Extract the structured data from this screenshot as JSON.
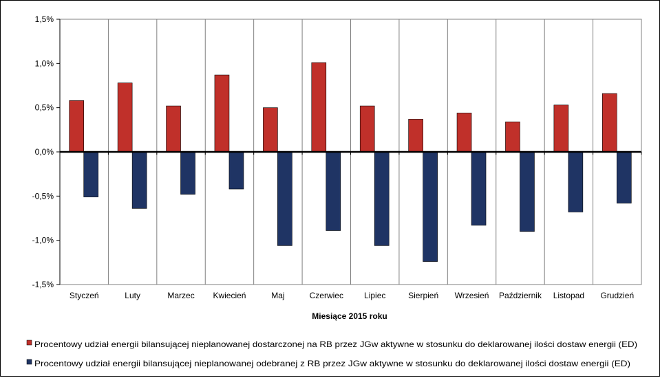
{
  "chart_data": {
    "type": "bar",
    "title": "",
    "xlabel": "Miesiące 2015  roku",
    "ylabel": "",
    "categories": [
      "Styczeń",
      "Luty",
      "Marzec",
      "Kwiecień",
      "Maj",
      "Czerwiec",
      "Lipiec",
      "Sierpień",
      "Wrzesień",
      "Październik",
      "Listopad",
      "Grudzień"
    ],
    "series": [
      {
        "name": "Procentowy udział energii bilansującej nieplanowanej dostarczonej na RB przez JGw aktywne w stosunku do deklarowanej ilości dostaw energii (ED)",
        "color": "#c0302a",
        "values": [
          0.58,
          0.78,
          0.52,
          0.87,
          0.5,
          1.01,
          0.52,
          0.37,
          0.44,
          0.34,
          0.53,
          0.66
        ]
      },
      {
        "name": "Procentowy udział energii bilansującej nieplanowanej odebranej z RB przez JGw aktywne w stosunku do deklarowanej ilości dostaw energii (ED)",
        "color": "#1f3464",
        "values": [
          -0.51,
          -0.64,
          -0.48,
          -0.42,
          -1.06,
          -0.89,
          -1.06,
          -1.24,
          -0.83,
          -0.9,
          -0.68,
          -0.58
        ]
      }
    ],
    "ylim": [
      -1.5,
      1.5
    ],
    "yticks": [
      "1,5%",
      "1,0%",
      "0,5%",
      "0,0%",
      "-0,5%",
      "-1,0%",
      "-1,5%"
    ],
    "grid": true,
    "legend_position": "bottom"
  }
}
